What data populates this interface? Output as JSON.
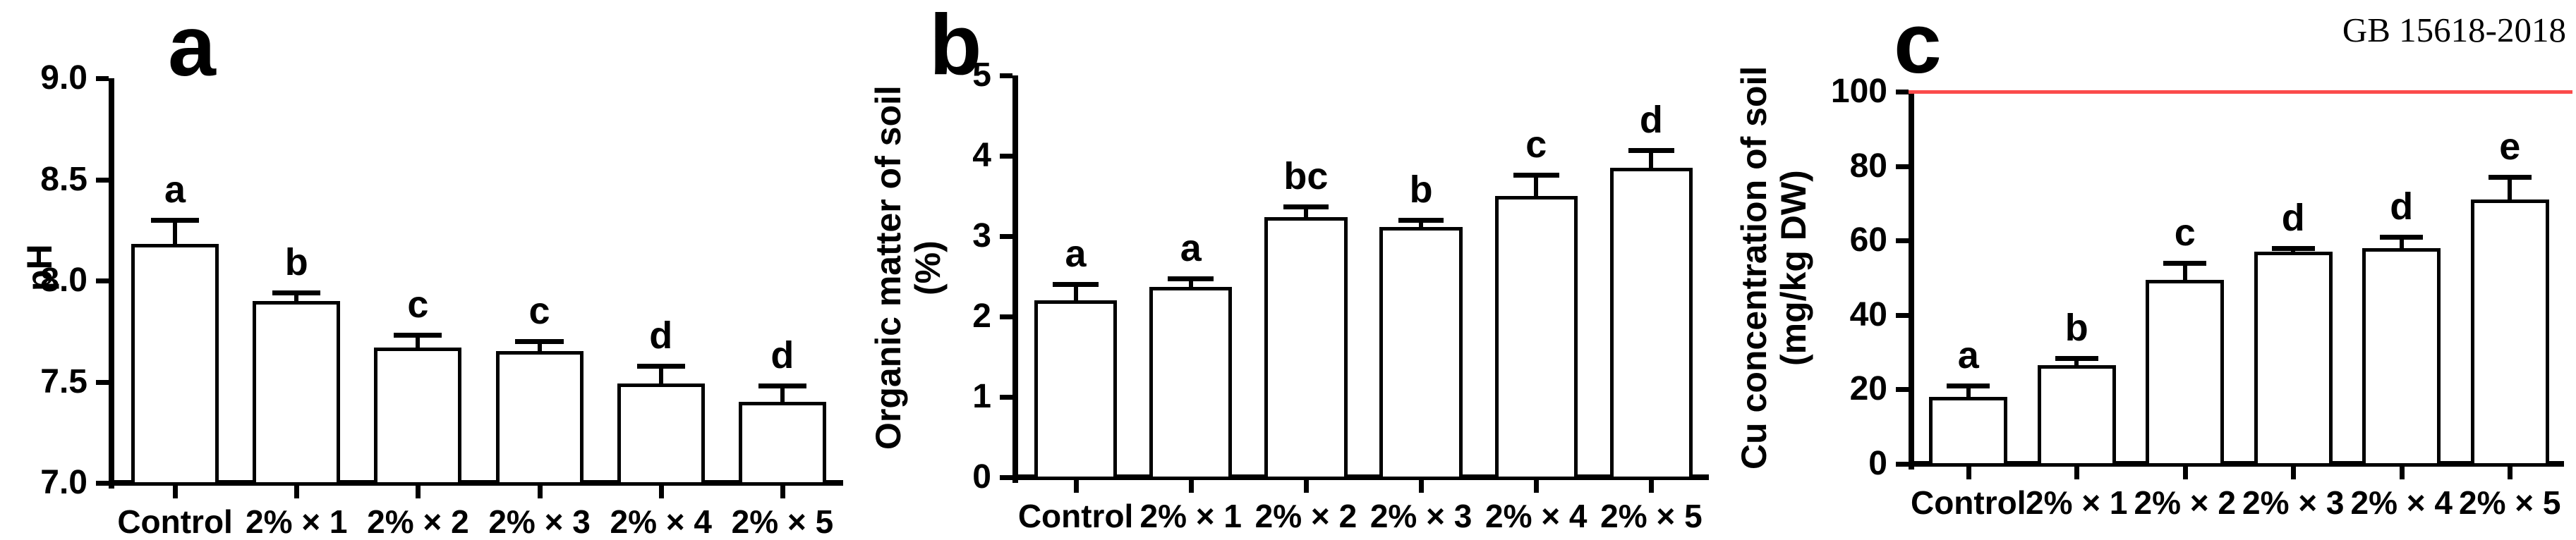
{
  "figure": {
    "background": "#ffffff",
    "bar_fill": "#ffffff",
    "bar_stroke": "#000000"
  },
  "chart_data": [
    {
      "type": "bar",
      "panel_letter": "a",
      "ylabel": "pH",
      "ylabel_line2": "",
      "categories": [
        "Control",
        "2% × 1",
        "2% × 2",
        "2% × 3",
        "2% × 4",
        "2% × 5"
      ],
      "values": [
        8.18,
        7.9,
        7.67,
        7.65,
        7.49,
        7.4
      ],
      "errors": [
        0.12,
        0.04,
        0.06,
        0.05,
        0.09,
        0.08
      ],
      "sig_letters": [
        "a",
        "b",
        "c",
        "c",
        "d",
        "d"
      ],
      "ylim": [
        7.0,
        9.0
      ],
      "yticks": [
        7.0,
        7.5,
        8.0,
        8.5,
        9.0
      ],
      "ytick_labels": [
        "7.0",
        "7.5",
        "8.0",
        "8.5",
        "9.0"
      ],
      "grid": false,
      "legend": "none"
    },
    {
      "type": "bar",
      "panel_letter": "b",
      "ylabel": "Organic matter of soil",
      "ylabel_line2": "(%)",
      "categories": [
        "Control",
        "2% × 1",
        "2% × 2",
        "2% × 3",
        "2% × 4",
        "2% × 5"
      ],
      "values": [
        2.2,
        2.37,
        3.24,
        3.11,
        3.5,
        3.85
      ],
      "errors": [
        0.2,
        0.1,
        0.13,
        0.09,
        0.26,
        0.22
      ],
      "sig_letters": [
        "a",
        "a",
        "bc",
        "b",
        "c",
        "d"
      ],
      "ylim": [
        0,
        5
      ],
      "yticks": [
        0,
        1,
        2,
        3,
        4,
        5
      ],
      "ytick_labels": [
        "0",
        "1",
        "2",
        "3",
        "4",
        "5"
      ],
      "grid": false,
      "legend": "none"
    },
    {
      "type": "bar",
      "panel_letter": "c",
      "ylabel": "Cu concentration of soil",
      "ylabel_line2": "(mg/kg DW)",
      "categories": [
        "Control",
        "2% × 1",
        "2% × 2",
        "2% × 3",
        "2% × 4",
        "2% × 5"
      ],
      "values": [
        18,
        26.5,
        49.5,
        57,
        58,
        71
      ],
      "errors": [
        3,
        2,
        4.5,
        1,
        3,
        6
      ],
      "sig_letters": [
        "a",
        "b",
        "c",
        "d",
        "d",
        "e"
      ],
      "ylim": [
        0,
        100
      ],
      "yticks": [
        0,
        20,
        40,
        60,
        80,
        100
      ],
      "ytick_labels": [
        "0",
        "20",
        "40",
        "60",
        "80",
        "100"
      ],
      "grid": false,
      "legend": "none",
      "ref_line": {
        "value": 100,
        "label": "GB 15618-2018",
        "color": "#fb4b4b"
      }
    }
  ]
}
